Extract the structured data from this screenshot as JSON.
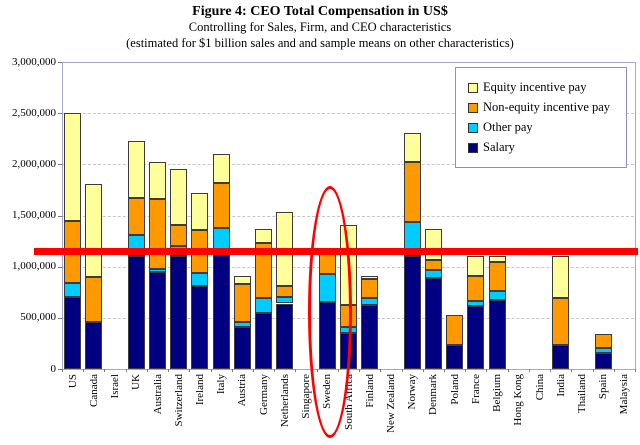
{
  "title": "Figure 4: CEO Total Compensation in US$",
  "subtitle1": "Controlling for Sales, Firm, and CEO characteristics",
  "subtitle2": "(estimated for $1 billion sales and and sample means on other characteristics)",
  "chart_data": {
    "type": "bar",
    "stacked": true,
    "title": "Figure 4: CEO Total Compensation in US$",
    "xlabel": "",
    "ylabel": "",
    "ylim": [
      0,
      3000000
    ],
    "ytick_interval": 500000,
    "ytick_labels": [
      "3,000,000",
      "2,500,000",
      "2,000,000",
      "1,500,000",
      "1,000,000",
      "500,000",
      "0"
    ],
    "grid": "dashed-horizontal",
    "categories": [
      "US",
      "Canada",
      "Israel",
      "UK",
      "Australia",
      "Switzerland",
      "Ireland",
      "Italy",
      "Austria",
      "Germany",
      "Netherlands",
      "Singapore",
      "Sweden",
      "South Africa",
      "Finland",
      "New Zealand",
      "Norway",
      "Denmark",
      "Poland",
      "France",
      "Belgium",
      "Hong Kong",
      "China",
      "India",
      "Thailand",
      "Spain",
      "Malaysia"
    ],
    "series": [
      {
        "name": "Salary",
        "color": "#000080",
        "values": [
          700000,
          455000,
          0,
          1105000,
          950000,
          1100000,
          810000,
          1150000,
          410000,
          545000,
          640000,
          0,
          655000,
          350000,
          625000,
          0,
          1100000,
          885000,
          230000,
          615000,
          670000,
          0,
          0,
          230000,
          0,
          155000,
          0
        ]
      },
      {
        "name": "Other pay",
        "color": "#00ccff",
        "values": [
          140000,
          0,
          0,
          205000,
          25000,
          100000,
          125000,
          225000,
          50000,
          145000,
          60000,
          0,
          275000,
          60000,
          65000,
          0,
          340000,
          80000,
          0,
          45000,
          95000,
          0,
          0,
          0,
          0,
          50000,
          0
        ]
      },
      {
        "name": "Non-equity incentive pay",
        "color": "#ff9900",
        "values": [
          605000,
          445000,
          0,
          360000,
          685000,
          210000,
          425000,
          440000,
          370000,
          540000,
          110000,
          0,
          230000,
          215000,
          185000,
          0,
          585000,
          105000,
          300000,
          250000,
          285000,
          0,
          0,
          465000,
          0,
          140000,
          0
        ]
      },
      {
        "name": "Equity incentive pay",
        "color": "#ffff99",
        "values": [
          1055000,
          905000,
          0,
          560000,
          365000,
          540000,
          355000,
          290000,
          80000,
          140000,
          720000,
          0,
          0,
          780000,
          35000,
          0,
          285000,
          295000,
          0,
          195000,
          55000,
          0,
          0,
          410000,
          0,
          0,
          0
        ]
      }
    ],
    "totals": [
      2500000,
      1805000,
      0,
      2230000,
      2025000,
      1950000,
      1715000,
      2105000,
      910000,
      1370000,
      1530000,
      0,
      1160000,
      1405000,
      910000,
      0,
      2310000,
      1365000,
      530000,
      1105000,
      1105000,
      0,
      0,
      1105000,
      0,
      345000,
      0
    ],
    "legend": {
      "position": "top-right",
      "items": [
        {
          "label": "Equity incentive pay",
          "color": "#ffff99"
        },
        {
          "label": "Non-equity incentive pay",
          "color": "#ff9900"
        },
        {
          "label": "Other pay",
          "color": "#00ccff"
        },
        {
          "label": "Salary",
          "color": "#000080"
        }
      ]
    },
    "annotations": {
      "red_line_value": 1150000,
      "red_ellipse_category": "Sweden",
      "annotation_color": "#ff0000"
    }
  }
}
